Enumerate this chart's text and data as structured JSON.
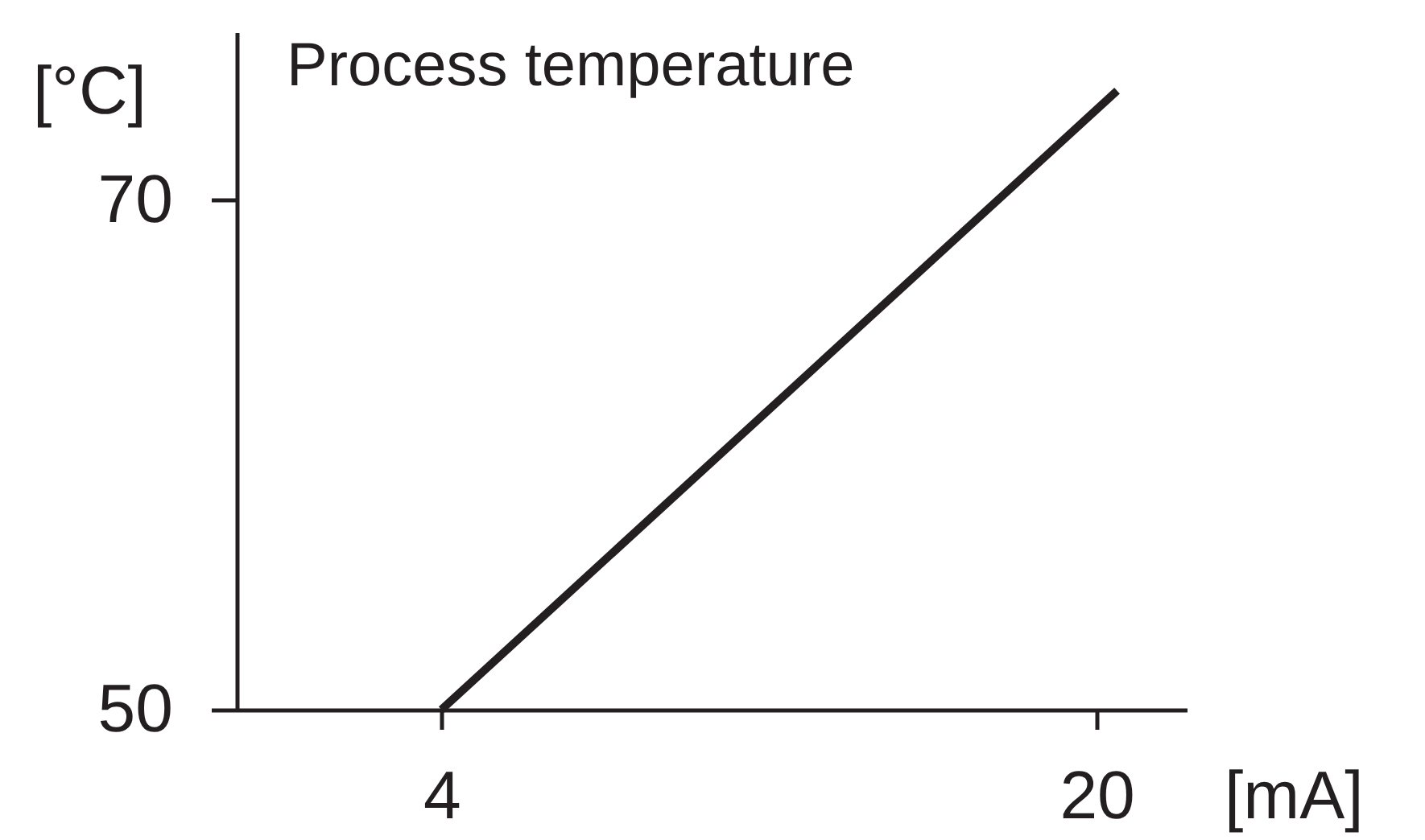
{
  "chart_data": {
    "type": "line",
    "title": "Process temperature",
    "xlabel": "[mA]",
    "ylabel": "[°C]",
    "x": [
      4,
      20.5
    ],
    "series": [
      {
        "color": "#231f20",
        "values": [
          50,
          74.3
        ]
      }
    ],
    "xlim": [
      -1,
      22.2
    ],
    "ylim": [
      50,
      76.6
    ],
    "xticks": [
      4,
      20
    ],
    "yticks": [
      50,
      70
    ],
    "grid": false,
    "marker": "none",
    "line_style": "solid"
  }
}
